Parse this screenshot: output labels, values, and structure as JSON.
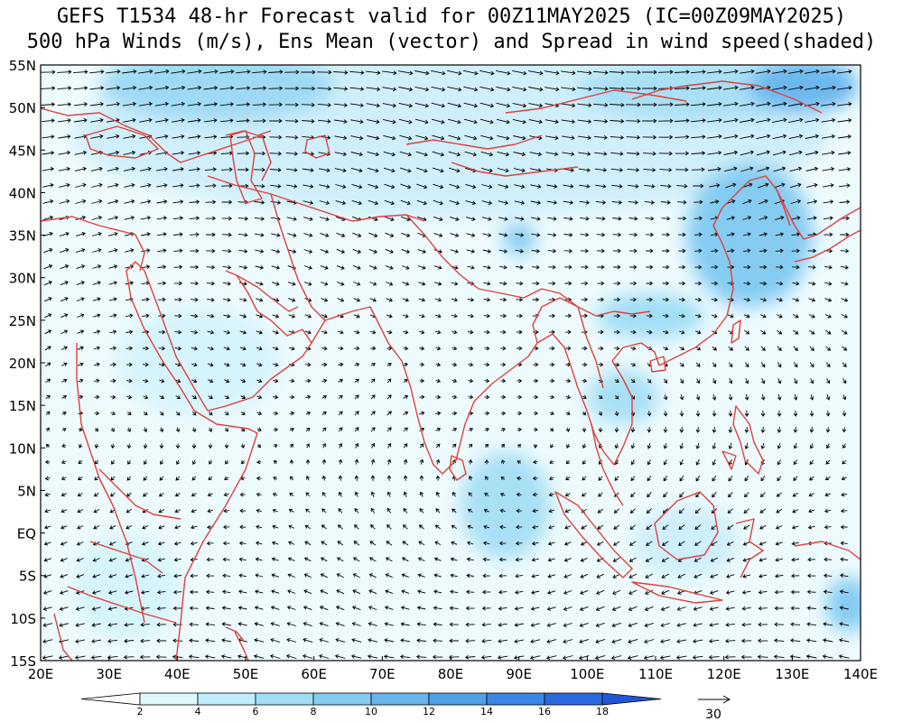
{
  "title": {
    "line1": "GEFS T1534 48-hr Forecast valid for 00Z11MAY2025 (IC=00Z09MAY2025)",
    "line2": "500 hPa Winds (m/s), Ens Mean (vector) and Spread in wind speed(shaded)"
  },
  "axes": {
    "lat_labels": [
      "55N",
      "50N",
      "45N",
      "40N",
      "35N",
      "30N",
      "25N",
      "20N",
      "15N",
      "10N",
      "5N",
      "EQ",
      "5S",
      "10S",
      "15S"
    ],
    "lon_labels": [
      "20E",
      "30E",
      "40E",
      "50E",
      "60E",
      "70E",
      "80E",
      "90E",
      "100E",
      "110E",
      "120E",
      "130E",
      "140E"
    ]
  },
  "colorbar": {
    "levels": [
      "2",
      "4",
      "6",
      "8",
      "10",
      "12",
      "14",
      "16",
      "18"
    ],
    "colors": [
      "#ffffff",
      "#dff8fc",
      "#bfeefa",
      "#a0def6",
      "#84ccf2",
      "#68b6ee",
      "#4ea0ea",
      "#3a86e6",
      "#2a6ae0",
      "#2256d8"
    ]
  },
  "reference_vector": {
    "value": "30"
  },
  "colors": {
    "coast": "#e0403a",
    "vectors": "#000000",
    "shade_light": "#cfeffb",
    "shade_mid": "#9fdaf4",
    "shade_dark": "#6cb8ee"
  }
}
